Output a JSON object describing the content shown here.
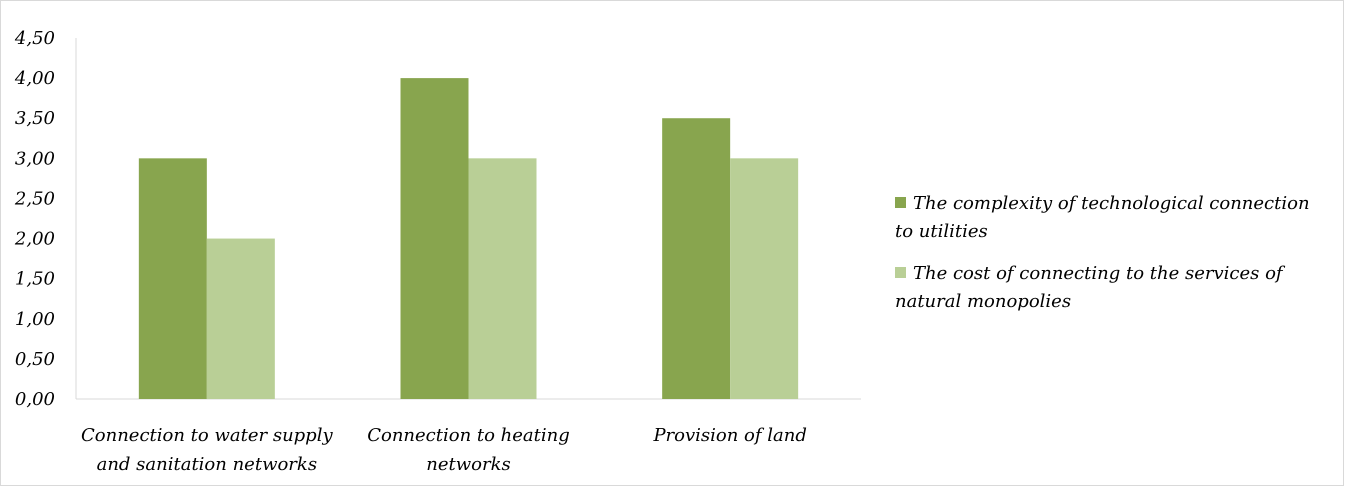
{
  "chart_data": {
    "type": "bar",
    "categories": [
      [
        "Connection to water supply",
        "and sanitation networks"
      ],
      [
        "Connection to heating",
        "networks"
      ],
      [
        "Provision of land"
      ]
    ],
    "series": [
      {
        "name_lines": [
          "The complexity of technological connection",
          "to utilities"
        ],
        "color": "#88a54e",
        "values": [
          3.0,
          4.0,
          3.5
        ]
      },
      {
        "name_lines": [
          "The cost of connecting to the services of",
          "natural monopolies"
        ],
        "color": "#b9cf96",
        "values": [
          2.0,
          3.0,
          3.0
        ]
      }
    ],
    "y_ticks": [
      "0,00",
      "0,50",
      "1,00",
      "1,50",
      "2,00",
      "2,50",
      "3,00",
      "3,50",
      "4,00",
      "4,50"
    ],
    "ylim": [
      0,
      4.5
    ],
    "grid": false,
    "legend_position": "right",
    "title": "",
    "xlabel": "",
    "ylabel": ""
  }
}
